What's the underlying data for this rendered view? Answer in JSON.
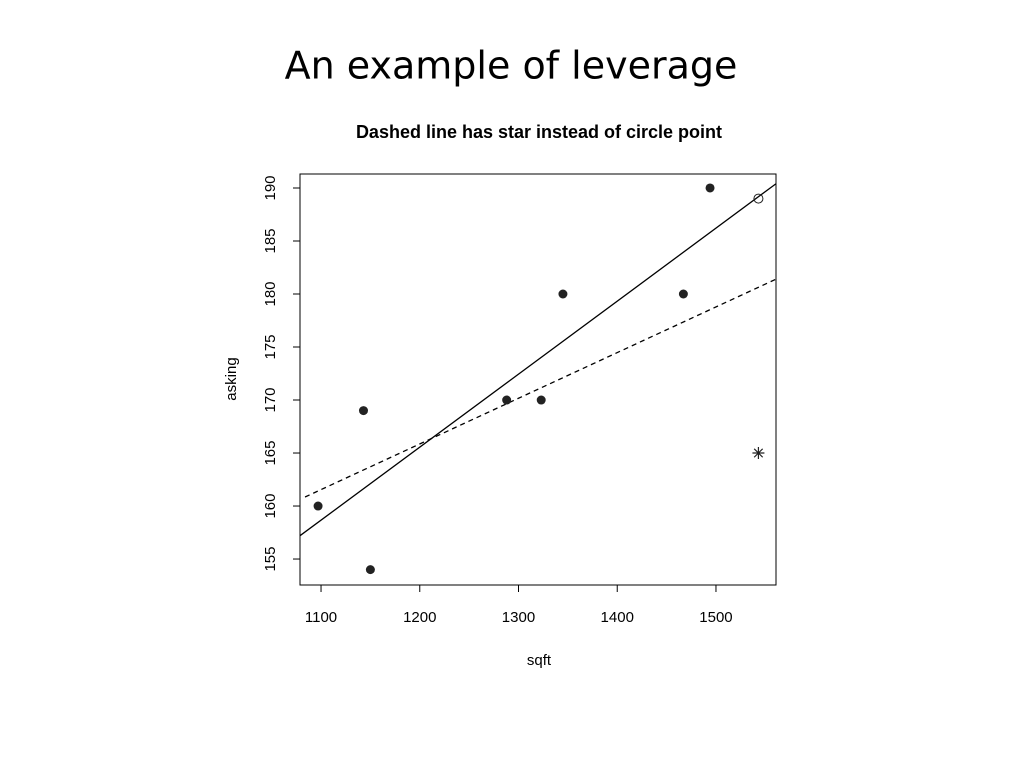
{
  "slide": {
    "title": "An example of leverage"
  },
  "chart_data": {
    "type": "scatter",
    "title": "Dashed line has star instead of circle point",
    "x_label": "sqft",
    "y_label": "asking",
    "xlim": [
      1078.7,
      1560.8
    ],
    "ylim": [
      152.55,
      191.32
    ],
    "xticks": [
      1100,
      1200,
      1300,
      1400,
      1500
    ],
    "yticks": [
      155,
      160,
      165,
      170,
      175,
      180,
      185,
      190
    ],
    "series": [
      {
        "marker": "filled-circle",
        "color": "#222222",
        "x": [
          1097,
          1143,
          1150,
          1288,
          1323,
          1345,
          1467,
          1494
        ],
        "y": [
          160,
          169,
          154,
          170,
          170,
          180,
          180,
          190
        ]
      },
      {
        "marker": "open-circle",
        "color": "#222222",
        "x": [
          1543
        ],
        "y": [
          189
        ]
      },
      {
        "marker": "star",
        "color": "#222222",
        "x": [
          1543
        ],
        "y": [
          165
        ]
      }
    ],
    "lines": [
      {
        "style": "solid",
        "color": "#000000",
        "x": [
          1078.7,
          1560.8
        ],
        "y": [
          157.2,
          190.4
        ]
      },
      {
        "style": "dashed",
        "color": "#000000",
        "x": [
          1083.8,
          1560.8
        ],
        "y": [
          160.85,
          181.4
        ]
      }
    ]
  }
}
